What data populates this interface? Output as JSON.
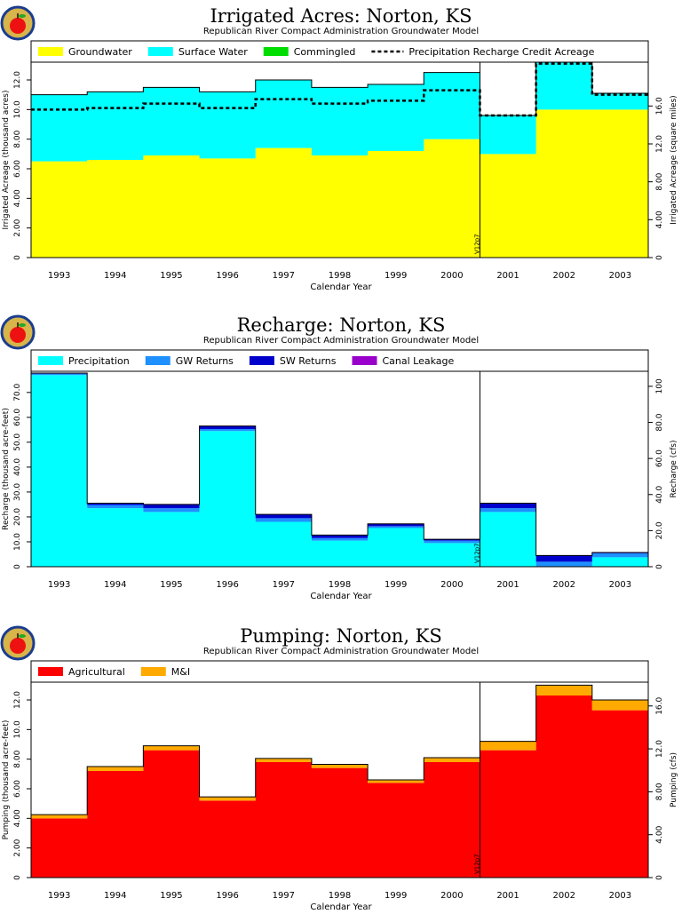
{
  "colors": {
    "groundwater": "#ffff00",
    "surface_water": "#00ffff",
    "commingled": "#00dd00",
    "precipitation": "#00ffff",
    "gw_returns": "#1e90ff",
    "sw_returns": "#0000cc",
    "canal_leakage": "#9900cc",
    "agricultural": "#ff0000",
    "mi": "#ffaa00"
  },
  "marker_label": "V12p7",
  "logo_icon": "apple-logo-icon",
  "chart_data": [
    {
      "type": "area",
      "title": "Irrigated  Acres:  Norton,  KS",
      "subtitle": "Republican  River  Compact  Administration  Groundwater  Model",
      "xlabel": "Calendar  Year",
      "ylabel": "Irrigated  Acreage  (thousand  acres)",
      "ylabel_right": "Irrigated  Acreage  (square  miles)",
      "categories": [
        "1993",
        "1994",
        "1995",
        "1996",
        "1997",
        "1998",
        "1999",
        "2000",
        "2001",
        "2002",
        "2003"
      ],
      "ylim": [
        0,
        13.2
      ],
      "yticks": [
        "0",
        "2.00",
        "4.00",
        "6.00",
        "8.00",
        "10.0",
        "12.0"
      ],
      "ytick_values": [
        0,
        2,
        4,
        6,
        8,
        10,
        12
      ],
      "right_ticks": [
        "0",
        "4.00",
        "8.00",
        "12.0",
        "16.0"
      ],
      "right_tick_values": [
        0,
        4,
        8,
        12,
        16
      ],
      "right_factor": 1.5625,
      "marker_index": 8,
      "series": [
        {
          "name": "Groundwater",
          "color_key": "groundwater",
          "values": [
            6.5,
            6.6,
            6.9,
            6.7,
            7.4,
            6.9,
            7.2,
            8.0,
            7.0,
            10.0,
            10.0
          ]
        },
        {
          "name": "Surface  Water",
          "color_key": "surface_water",
          "values": [
            4.5,
            4.6,
            4.6,
            4.5,
            4.6,
            4.6,
            4.5,
            4.5,
            2.6,
            3.2,
            1.1
          ]
        },
        {
          "name": "Commingled",
          "color_key": "commingled",
          "values": [
            0,
            0,
            0,
            0,
            0,
            0,
            0,
            0,
            0,
            0,
            0
          ]
        }
      ],
      "line": {
        "name": "Precipitation  Recharge  Credit  Acreage",
        "values": [
          10.0,
          10.1,
          10.4,
          10.1,
          10.7,
          10.4,
          10.6,
          11.3,
          9.6,
          13.1,
          11.0
        ]
      }
    },
    {
      "type": "area",
      "title": "Recharge:  Norton,  KS",
      "subtitle": "Republican  River  Compact  Administration  Groundwater  Model",
      "xlabel": "Calendar  Year",
      "ylabel": "Recharge  (thousand  acre-feet)",
      "ylabel_right": "Recharge  (cfs)",
      "categories": [
        "1993",
        "1994",
        "1995",
        "1996",
        "1997",
        "1998",
        "1999",
        "2000",
        "2001",
        "2002",
        "2003"
      ],
      "ylim": [
        0,
        78.5
      ],
      "yticks": [
        "0",
        "10.0",
        "20.0",
        "30.0",
        "40.0",
        "50.0",
        "60.0",
        "70.0"
      ],
      "ytick_values": [
        0,
        10,
        20,
        30,
        40,
        50,
        60,
        70
      ],
      "right_ticks": [
        "0",
        "20.0",
        "40.0",
        "60.0",
        "80.0",
        "100"
      ],
      "right_tick_values": [
        0,
        20,
        40,
        60,
        80,
        100
      ],
      "right_factor": 1.38,
      "marker_index": 8,
      "series": [
        {
          "name": "Precipitation",
          "color_key": "precipitation",
          "values": [
            77.0,
            23.5,
            22.0,
            54.5,
            18.0,
            10.5,
            15.5,
            9.5,
            22.0,
            0,
            3.8
          ]
        },
        {
          "name": "GW  Returns",
          "color_key": "gw_returns",
          "values": [
            0.5,
            1.3,
            1.5,
            0.8,
            1.5,
            1.0,
            0.8,
            1.0,
            1.5,
            2.0,
            1.6
          ]
        },
        {
          "name": "SW  Returns",
          "color_key": "sw_returns",
          "values": [
            0.3,
            0.7,
            1.5,
            1.2,
            1.5,
            1.2,
            0.9,
            0.5,
            2.0,
            2.5,
            0.3
          ]
        },
        {
          "name": "Canal  Leakage",
          "color_key": "canal_leakage",
          "values": [
            0,
            0,
            0,
            0,
            0,
            0,
            0,
            0,
            0,
            0,
            0
          ]
        }
      ]
    },
    {
      "type": "area",
      "title": "Pumping:  Norton,  KS",
      "subtitle": "Republican  River  Compact  Administration  Groundwater  Model",
      "xlabel": "Calendar  Year",
      "ylabel": "Pumping  (thousand  acre-feet)",
      "ylabel_right": "Pumping  (cfs)",
      "categories": [
        "1993",
        "1994",
        "1995",
        "1996",
        "1997",
        "1998",
        "1999",
        "2000",
        "2001",
        "2002",
        "2003"
      ],
      "ylim": [
        0,
        13.2
      ],
      "yticks": [
        "0",
        "2.00",
        "4.00",
        "6.00",
        "8.00",
        "10.0",
        "12.0"
      ],
      "ytick_values": [
        0,
        2,
        4,
        6,
        8,
        10,
        12
      ],
      "right_ticks": [
        "0",
        "4.00",
        "8.00",
        "12.0",
        "16.0"
      ],
      "right_tick_values": [
        0,
        4,
        8,
        12,
        16
      ],
      "right_factor": 1.38,
      "marker_index": 8,
      "series": [
        {
          "name": "Agricultural",
          "color_key": "agricultural",
          "values": [
            4.0,
            7.2,
            8.6,
            5.2,
            7.8,
            7.4,
            6.4,
            7.8,
            8.6,
            12.3,
            11.3
          ]
        },
        {
          "name": "M&I",
          "color_key": "mi",
          "values": [
            0.25,
            0.3,
            0.3,
            0.25,
            0.25,
            0.25,
            0.2,
            0.3,
            0.6,
            0.7,
            0.7
          ]
        }
      ]
    }
  ]
}
